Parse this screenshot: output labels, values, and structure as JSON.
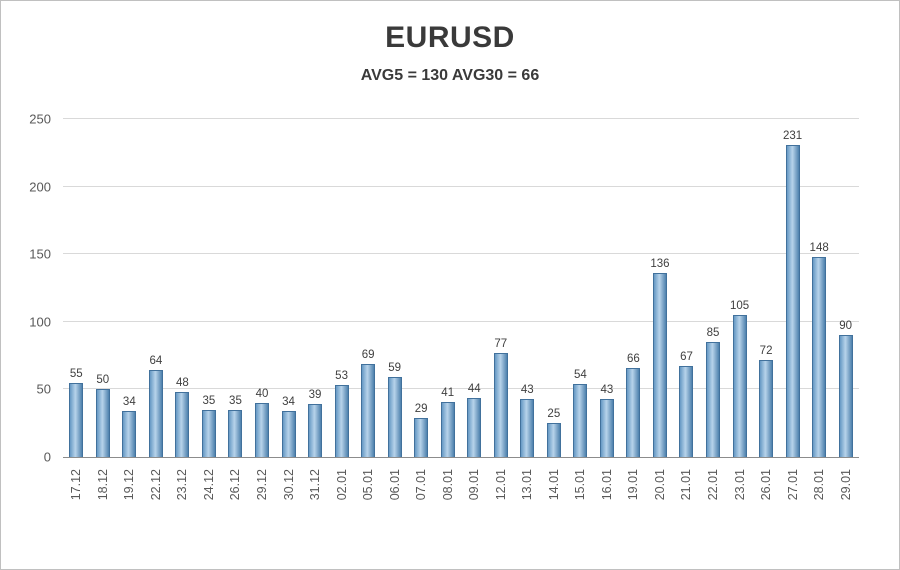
{
  "header": {
    "title": "EURUSD",
    "subtitle": "AVG5 = 130 AVG30 = 66"
  },
  "chart_data": {
    "type": "bar",
    "title": "EURUSD",
    "subtitle": "AVG5 = 130 AVG30 = 66",
    "categories": [
      "17.12",
      "18.12",
      "19.12",
      "22.12",
      "23.12",
      "24.12",
      "26.12",
      "29.12",
      "30.12",
      "31.12",
      "02.01",
      "05.01",
      "06.01",
      "07.01",
      "08.01",
      "09.01",
      "12.01",
      "13.01",
      "14.01",
      "15.01",
      "16.01",
      "19.01",
      "20.01",
      "21.01",
      "22.01",
      "23.01",
      "26.01",
      "27.01",
      "28.01",
      "29.01"
    ],
    "values": [
      55,
      50,
      34,
      64,
      48,
      35,
      35,
      40,
      34,
      39,
      53,
      69,
      59,
      29,
      41,
      44,
      77,
      43,
      25,
      54,
      43,
      66,
      136,
      67,
      85,
      105,
      72,
      231,
      148,
      90
    ],
    "xlabel": "",
    "ylabel": "",
    "ylim": [
      0,
      250
    ],
    "yticks": [
      0,
      50,
      100,
      150,
      200,
      250
    ],
    "grid": "horizontal",
    "legend": "none",
    "colors": {
      "bar_edge": "#41719c",
      "bar_gradient_left": "#6699c4",
      "bar_gradient_mid": "#b7d3ea",
      "bar_gradient_right": "#4e81ad",
      "gridline": "#d9d9d9",
      "axis_line": "#8c8c8c",
      "label_text": "#595959",
      "title_text": "#3a3a3a"
    }
  }
}
